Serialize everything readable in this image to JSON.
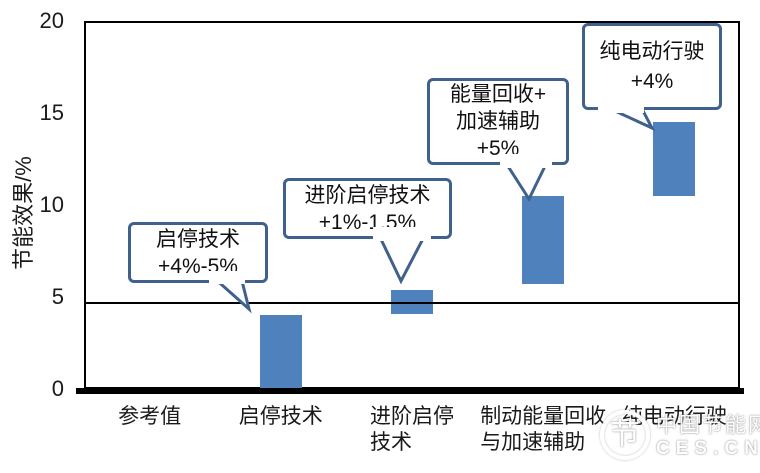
{
  "chart_data": {
    "type": "bar",
    "subtype": "floating-range-bars",
    "title": "",
    "ylabel": "节能效果/%",
    "xlabel": "",
    "ylim": [
      0,
      20
    ],
    "yticks_top_to_bottom": [
      "20",
      "15",
      "10",
      "5",
      "0"
    ],
    "ytick_values_top_to_bottom": [
      20,
      15,
      10,
      5,
      0
    ],
    "grid": "off",
    "reference_line_value": 4.7,
    "categories": [
      [
        "参考值"
      ],
      [
        "启停技术"
      ],
      [
        "进阶启停",
        "技术"
      ],
      [
        "制动能量回收",
        "与加速辅助"
      ],
      [
        "纯电动行驶"
      ]
    ],
    "bar_color": "#4f81bd",
    "bars": [
      {
        "category": "启停技术",
        "cat_index": 1,
        "from": 0,
        "to": 4.0
      },
      {
        "category": "进阶启停技术",
        "cat_index": 2,
        "from": 4.1,
        "to": 5.4
      },
      {
        "category": "制动能量回收与加速辅助",
        "cat_index": 3,
        "from": 5.7,
        "to": 10.5
      },
      {
        "category": "纯电动行驶",
        "cat_index": 4,
        "from": 10.5,
        "to": 14.5
      }
    ],
    "annotations": [
      {
        "lines": [
          "启停技术",
          "+4%-5%"
        ],
        "points_to": "启停技术"
      },
      {
        "lines": [
          "进阶启停技术",
          "+1%-1.5%"
        ],
        "points_to": "进阶启停技术"
      },
      {
        "lines": [
          "能量回收+",
          "加速辅助",
          "+5%"
        ],
        "points_to": "制动能量回收与加速辅助"
      },
      {
        "lines": [
          "纯电动行驶",
          "+4%"
        ],
        "points_to": "纯电动行驶"
      }
    ],
    "annotation_border_color": "#3f618c"
  },
  "watermark": {
    "logo_glyph": "节",
    "site_name": "中国节能网",
    "site_domain": "CES.CN"
  }
}
